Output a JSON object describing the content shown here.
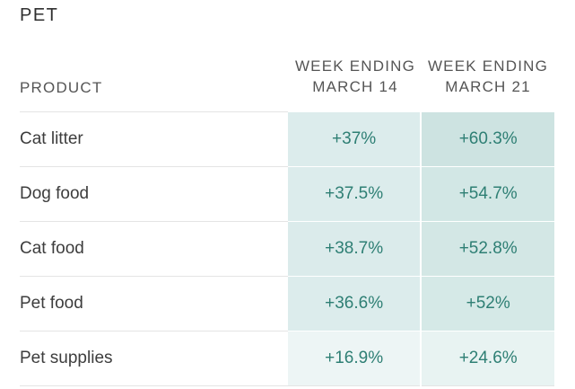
{
  "section_title": "PET",
  "headers": {
    "product": "PRODUCT",
    "week1_line1": "WEEK ENDING",
    "week1_line2": "MARCH 14",
    "week2_line1": "WEEK ENDING",
    "week2_line2": "MARCH 21"
  },
  "colors": {
    "value_text": "#2e7f74",
    "cell_shades": [
      "#cfe6e4",
      "#d9ecea",
      "#e6f2f1",
      "#f1f8f7"
    ]
  },
  "rows": [
    {
      "product": "Cat litter",
      "week1": "+37%",
      "week2": "+60.3%",
      "shade1": "#dcecec",
      "shade2": "#cde3e1"
    },
    {
      "product": "Dog food",
      "week1": "+37.5%",
      "week2": "+54.7%",
      "shade1": "#dcecec",
      "shade2": "#d2e7e5"
    },
    {
      "product": "Cat food",
      "week1": "+38.7%",
      "week2": "+52.8%",
      "shade1": "#dbebeb",
      "shade2": "#d3e7e5"
    },
    {
      "product": "Pet food",
      "week1": "+36.6%",
      "week2": "+52%",
      "shade1": "#dcecec",
      "shade2": "#d5e9e7"
    },
    {
      "product": "Pet supplies",
      "week1": "+16.9%",
      "week2": "+24.6%",
      "shade1": "#edf5f5",
      "shade2": "#e8f3f2"
    }
  ]
}
